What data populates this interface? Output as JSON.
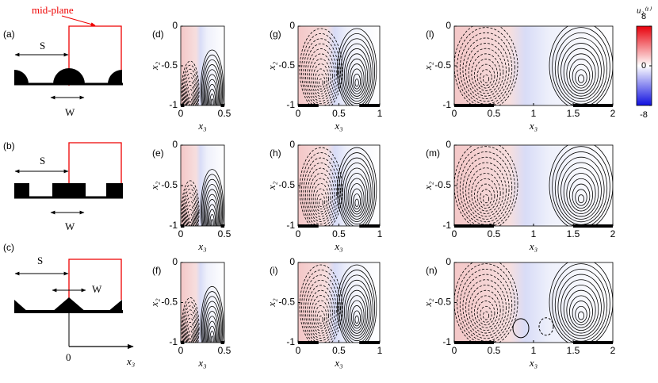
{
  "schematics": [
    {
      "label": "(a)",
      "S": "S",
      "W": "W"
    },
    {
      "label": "(b)",
      "S": "S",
      "W": "W"
    },
    {
      "label": "(c)",
      "S": "S",
      "W": "W"
    }
  ],
  "mid_plane": "mid-plane",
  "origin_axis": {
    "origin": "0",
    "label": "x₃"
  },
  "panels": [
    {
      "label": "(d)",
      "xlabel": "x₃",
      "ylabel": "x₂",
      "xlim": [
        0,
        0.5
      ],
      "ylim": [
        -1,
        0
      ],
      "xticks": [
        0,
        0.5
      ],
      "yticks": [
        -1,
        -0.5,
        0
      ]
    },
    {
      "label": "(g)",
      "xlabel": "x₃",
      "ylabel": "x₂",
      "xlim": [
        0,
        1
      ],
      "ylim": [
        -1,
        0
      ],
      "xticks": [
        0,
        0.5,
        1
      ],
      "yticks": [
        -1,
        -0.5,
        0
      ]
    },
    {
      "label": "(l)",
      "xlabel": "x₃",
      "ylabel": "x₂",
      "xlim": [
        0,
        2
      ],
      "ylim": [
        -1,
        0
      ],
      "xticks": [
        0,
        0.5,
        1,
        1.5,
        2
      ],
      "yticks": [
        -1,
        -0.5,
        0
      ]
    },
    {
      "label": "(e)",
      "xlabel": "x₃",
      "ylabel": "x₂",
      "xlim": [
        0,
        0.5
      ],
      "ylim": [
        -1,
        0
      ],
      "xticks": [
        0,
        0.5
      ],
      "yticks": [
        -1,
        -0.5,
        0
      ]
    },
    {
      "label": "(h)",
      "xlabel": "x₃",
      "ylabel": "x₂",
      "xlim": [
        0,
        1
      ],
      "ylim": [
        -1,
        0
      ],
      "xticks": [
        0,
        0.5,
        1
      ],
      "yticks": [
        -1,
        -0.5,
        0
      ]
    },
    {
      "label": "(m)",
      "xlabel": "x₃",
      "ylabel": "x₂",
      "xlim": [
        0,
        2
      ],
      "ylim": [
        -1,
        0
      ],
      "xticks": [
        0,
        0.5,
        1,
        1.5,
        2
      ],
      "yticks": [
        -1,
        -0.5,
        0
      ]
    },
    {
      "label": "(f)",
      "xlabel": "x₃",
      "ylabel": "x₂",
      "xlim": [
        0,
        0.5
      ],
      "ylim": [
        -1,
        0
      ],
      "xticks": [
        0,
        0.5
      ],
      "yticks": [
        -1,
        -0.5,
        0
      ]
    },
    {
      "label": "(i)",
      "xlabel": "x₃",
      "ylabel": "x₂",
      "xlim": [
        0,
        1
      ],
      "ylim": [
        -1,
        0
      ],
      "xticks": [
        0,
        0.5,
        1
      ],
      "yticks": [
        -1,
        -0.5,
        0
      ]
    },
    {
      "label": "(n)",
      "xlabel": "x₃",
      "ylabel": "x₂",
      "xlim": [
        0,
        2
      ],
      "ylim": [
        -1,
        0
      ],
      "xticks": [
        0,
        0.5,
        1,
        1.5,
        2
      ],
      "yticks": [
        -1,
        -0.5,
        0
      ]
    }
  ],
  "colorbar": {
    "label": "u₂⁽¹⁾",
    "lim": [
      -8,
      8
    ],
    "ticks": [
      -8,
      0,
      8
    ]
  }
}
